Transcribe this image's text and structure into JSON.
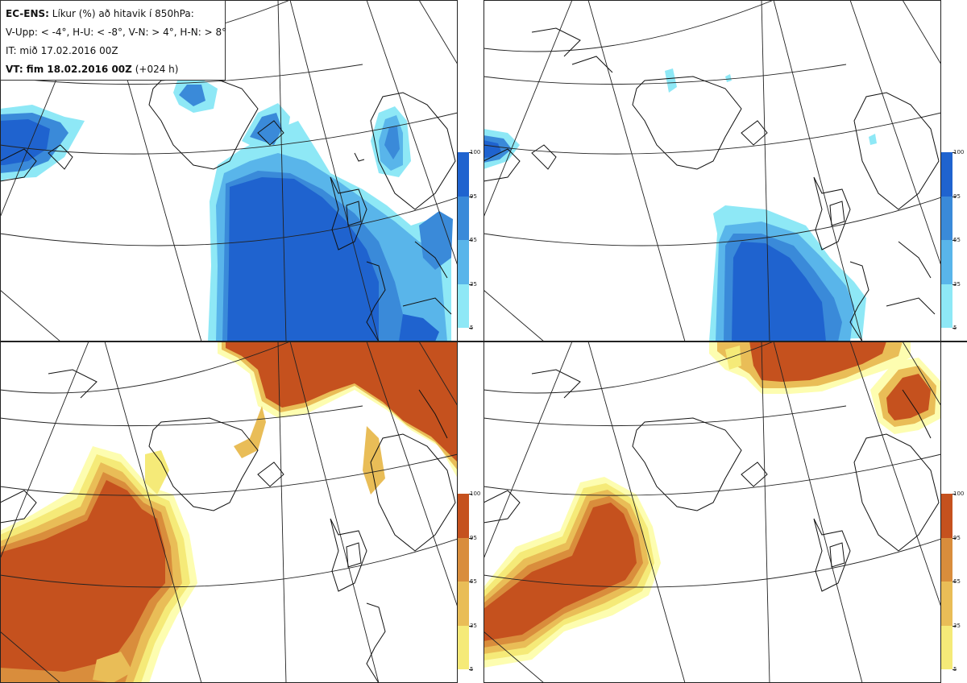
{
  "info": {
    "line1_bold": "EC-ENS:",
    "line1_rest": "Líkur (%) að hitavik í 850hPa:",
    "line2": "V-Upp: < -4°, H-U: < -8°, V-N: > 4°, H-N: > 8°",
    "line3": "IT: mið 17.02.2016 00Z",
    "line4_bold": "VT: fim 18.02.2016 00Z",
    "line4_rest": "(+024 h)"
  },
  "colorbars": {
    "ticks": [
      "100",
      "95",
      "65",
      "35",
      "5"
    ],
    "cold_colors": [
      "#1f63cf",
      "#3a8ad9",
      "#59b5ea",
      "#8ee8f6",
      "#d2fbfd"
    ],
    "warm_colors": [
      "#c5511e",
      "#d98d3c",
      "#e9bd57",
      "#f5ea78",
      "#fdfdb0"
    ]
  },
  "panels": [
    {
      "id": "tl",
      "meaning": "V-Upp"
    },
    {
      "id": "tr",
      "meaning": "H-U"
    },
    {
      "id": "bl",
      "meaning": "V-N"
    },
    {
      "id": "br",
      "meaning": "H-N"
    }
  ]
}
